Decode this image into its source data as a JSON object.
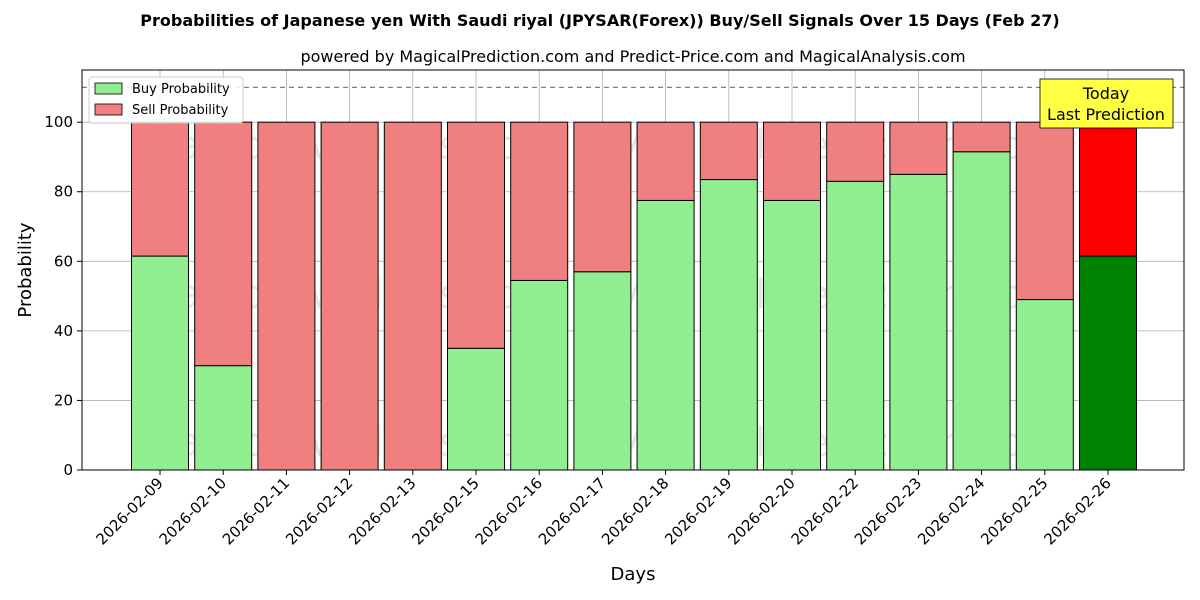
{
  "chart_data": {
    "type": "bar",
    "stacked": true,
    "title": "Probabilities of Japanese yen With Saudi riyal (JPYSAR(Forex)) Buy/Sell Signals Over 15 Days (Feb 27)",
    "subtitle": "powered by MagicalPrediction.com and Predict-Price.com and MagicalAnalysis.com",
    "xlabel": "Days",
    "ylabel": "Probability",
    "ylim": [
      0,
      115
    ],
    "yticks": [
      0,
      20,
      40,
      60,
      80,
      100
    ],
    "reference_line": 110,
    "grid": true,
    "legend_position": "top-left",
    "categories": [
      "2026-02-09",
      "2026-02-10",
      "2026-02-11",
      "2026-02-12",
      "2026-02-13",
      "2026-02-15",
      "2026-02-16",
      "2026-02-17",
      "2026-02-18",
      "2026-02-19",
      "2026-02-20",
      "2026-02-22",
      "2026-02-23",
      "2026-02-24",
      "2026-02-25",
      "2026-02-26"
    ],
    "series": [
      {
        "name": "Buy Probability",
        "color": "#90ee90",
        "highlight_color": "#008000",
        "values": [
          61.5,
          30,
          0,
          0,
          0,
          35,
          54.5,
          57,
          77.5,
          83.5,
          77.5,
          83,
          85,
          91.5,
          49,
          61.5
        ]
      },
      {
        "name": "Sell Probability",
        "color": "#f08080",
        "highlight_color": "#ff0000",
        "values": [
          38.5,
          70,
          100,
          100,
          100,
          65,
          45.5,
          43,
          22.5,
          16.5,
          22.5,
          17,
          15,
          8.5,
          51,
          38.5
        ]
      }
    ],
    "highlight_index": 15,
    "annotation": {
      "line1": "Today",
      "line2": "Last Prediction",
      "color": "#ffff44"
    },
    "watermarks": [
      "MagicalAnalysis.com",
      "MagicalPrediction.com"
    ]
  }
}
